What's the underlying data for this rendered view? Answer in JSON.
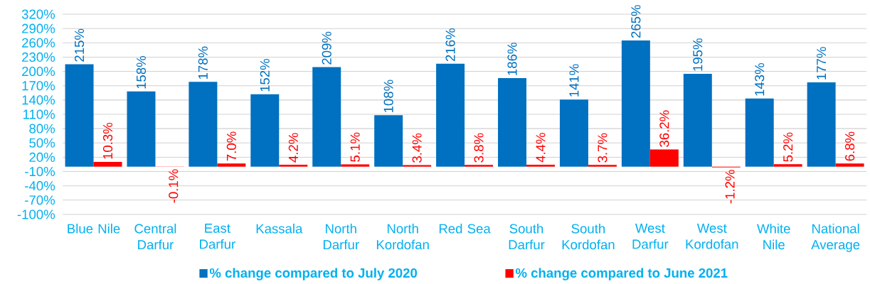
{
  "chart_data": {
    "type": "bar",
    "categories": [
      "Blue Nile",
      "Central Darfur",
      "East Darfur",
      "Kassala",
      "North Darfur",
      "North Kordofan",
      "Red Sea",
      "South Darfur",
      "South Kordofan",
      "West Darfur",
      "West Kordofan",
      "White Nile",
      "National Average"
    ],
    "series": [
      {
        "name": "% change compared to July 2020",
        "color": "#0070c0",
        "values": [
          215,
          158,
          178,
          152,
          209,
          108,
          216,
          186,
          141,
          265,
          195,
          143,
          177
        ],
        "value_labels": [
          "215%",
          "158%",
          "178%",
          "152%",
          "209%",
          "108%",
          "216%",
          "186%",
          "141%",
          "265%",
          "195%",
          "143%",
          "177%"
        ]
      },
      {
        "name": "% change compared to June 2021",
        "color": "#ff0000",
        "values": [
          10.3,
          -0.1,
          7.0,
          4.2,
          5.1,
          3.4,
          3.8,
          4.4,
          3.7,
          36.2,
          -1.2,
          5.2,
          6.8
        ],
        "value_labels": [
          "10.3%",
          "-0.1%",
          "7.0%",
          "4.2%",
          "5.1%",
          "3.4%",
          "3.8%",
          "4.4%",
          "3.7%",
          "36.2%",
          "-1.2%",
          "5.2%",
          "6.8%"
        ]
      }
    ],
    "ylim": [
      -100,
      320
    ],
    "yticks": [
      {
        "value": -100,
        "label": "-100%"
      },
      {
        "value": -70,
        "label": "-70%"
      },
      {
        "value": -40,
        "label": "-40%"
      },
      {
        "value": -10,
        "label": "-10%"
      },
      {
        "value": 20,
        "label": "20%"
      },
      {
        "value": 50,
        "label": "50%"
      },
      {
        "value": 80,
        "label": "80%"
      },
      {
        "value": 110,
        "label": "110%"
      },
      {
        "value": 140,
        "label": "140%"
      },
      {
        "value": 170,
        "label": "170%"
      },
      {
        "value": 200,
        "label": "200%"
      },
      {
        "value": 230,
        "label": "230%"
      },
      {
        "value": 260,
        "label": "260%"
      },
      {
        "value": 290,
        "label": "290%"
      },
      {
        "value": 320,
        "label": "320%"
      }
    ],
    "grid": "y",
    "legend": "bottom"
  }
}
